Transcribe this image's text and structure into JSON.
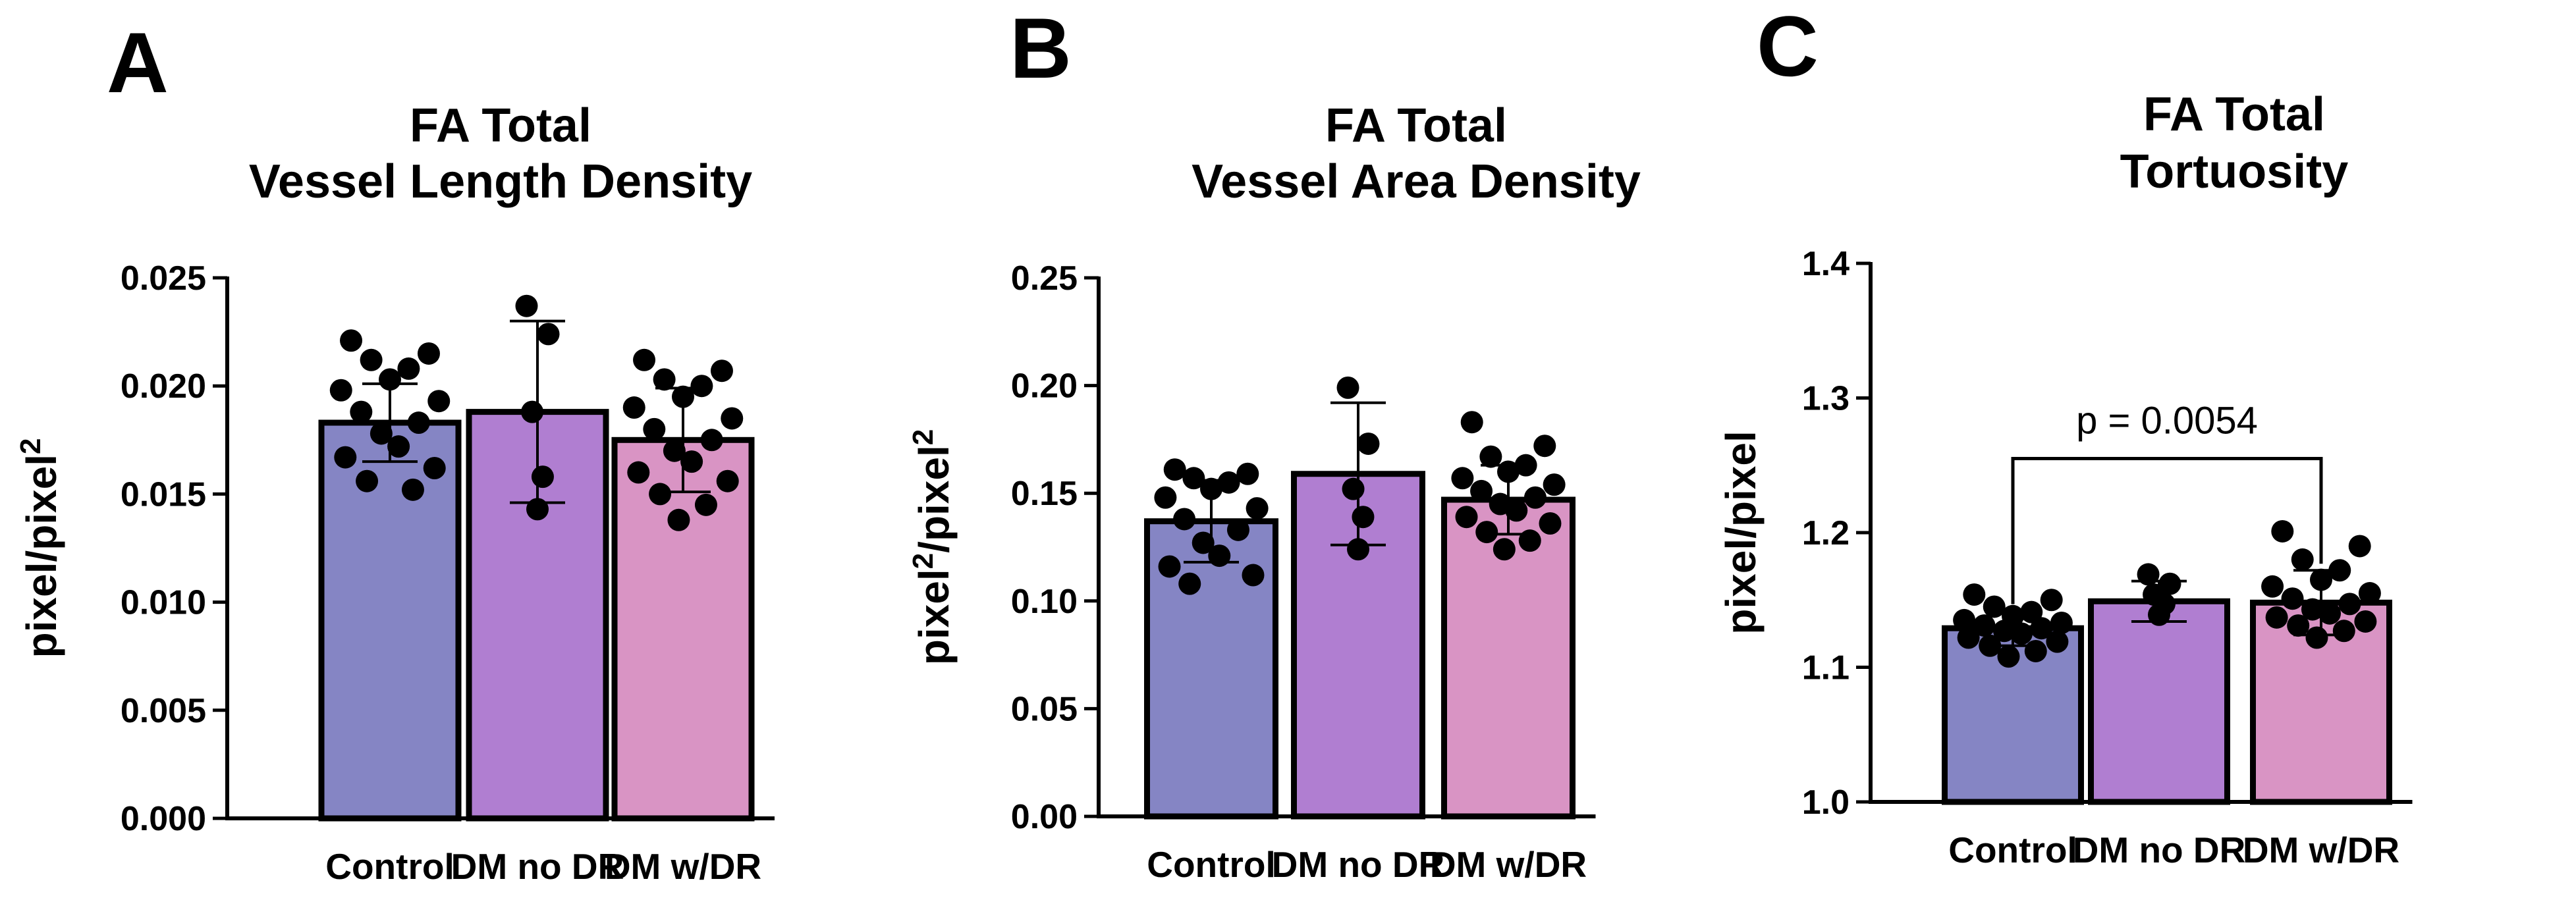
{
  "chart_data": [
    {
      "type": "bar",
      "panel_label": "A",
      "title_lines": [
        "FA Total",
        "Vessel Length Density"
      ],
      "ylabel": "pixel/pixel",
      "ylabel_sup": "2",
      "ylabel_tail": "",
      "xlabel": "",
      "ylim": [
        0,
        0.025
      ],
      "y_ticks": [
        "0.000",
        "0.005",
        "0.010",
        "0.015",
        "0.020",
        "0.025"
      ],
      "categories": [
        "Control",
        "DM no DR",
        "DM w/DR"
      ],
      "values": [
        0.0183,
        0.0188,
        0.0175
      ],
      "sd": [
        0.0018,
        0.0042,
        0.0024
      ],
      "colors": [
        "#8585c4",
        "#b07ed1",
        "#d994c4"
      ],
      "points": [
        [
          0.0221,
          0.0215,
          0.0212,
          0.0208,
          0.0203,
          0.0198,
          0.0193,
          0.0188,
          0.0183,
          0.0178,
          0.0172,
          0.0167,
          0.0162,
          0.0156,
          0.0152
        ],
        [
          0.0237,
          0.0224,
          0.0188,
          0.0158,
          0.0143
        ],
        [
          0.0212,
          0.0207,
          0.0203,
          0.02,
          0.0195,
          0.019,
          0.0185,
          0.018,
          0.0175,
          0.017,
          0.0165,
          0.016,
          0.0156,
          0.015,
          0.0145,
          0.0138
        ]
      ],
      "annotation": null
    },
    {
      "type": "bar",
      "panel_label": "B",
      "title_lines": [
        "FA Total",
        "Vessel Area Density"
      ],
      "ylabel": "pixel",
      "ylabel_sup": "2",
      "ylabel_tail": "/pixel",
      "ylabel_tail_sup": "2",
      "xlabel": "",
      "ylim": [
        0,
        0.25
      ],
      "y_ticks": [
        "0.00",
        "0.05",
        "0.10",
        "0.15",
        "0.20",
        "0.25"
      ],
      "categories": [
        "Control",
        "DM no DR",
        "DM w/DR"
      ],
      "values": [
        0.137,
        0.159,
        0.147
      ],
      "sd": [
        0.019,
        0.033,
        0.016
      ],
      "colors": [
        "#8585c4",
        "#b07ed1",
        "#d994c4"
      ],
      "points": [
        [
          0.161,
          0.159,
          0.157,
          0.155,
          0.152,
          0.148,
          0.143,
          0.138,
          0.133,
          0.127,
          0.121,
          0.116,
          0.112,
          0.108
        ],
        [
          0.199,
          0.173,
          0.152,
          0.139,
          0.124
        ],
        [
          0.183,
          0.172,
          0.167,
          0.163,
          0.16,
          0.157,
          0.154,
          0.151,
          0.148,
          0.145,
          0.142,
          0.139,
          0.136,
          0.132,
          0.128,
          0.124
        ]
      ],
      "annotation": null
    },
    {
      "type": "bar",
      "panel_label": "C",
      "title_lines": [
        "FA Total",
        "Tortuosity"
      ],
      "ylabel": "pixel/pixel",
      "ylabel_sup": "",
      "ylabel_tail": "",
      "xlabel": "",
      "ylim": [
        1.0,
        1.4
      ],
      "y_ticks": [
        "1.0",
        "1.1",
        "1.2",
        "1.3",
        "1.4"
      ],
      "categories": [
        "Control",
        "DM no DR",
        "DM w/DR"
      ],
      "values": [
        1.129,
        1.149,
        1.148
      ],
      "sd": [
        0.013,
        0.015,
        0.024
      ],
      "colors": [
        "#8585c4",
        "#b07ed1",
        "#d994c4"
      ],
      "points": [
        [
          1.154,
          1.15,
          1.145,
          1.141,
          1.138,
          1.135,
          1.133,
          1.131,
          1.129,
          1.127,
          1.125,
          1.122,
          1.119,
          1.116,
          1.112,
          1.108
        ],
        [
          1.169,
          1.162,
          1.154,
          1.147,
          1.139
        ],
        [
          1.201,
          1.19,
          1.18,
          1.172,
          1.165,
          1.16,
          1.155,
          1.151,
          1.147,
          1.143,
          1.14,
          1.137,
          1.134,
          1.131,
          1.127,
          1.122
        ]
      ],
      "annotation": {
        "text": "p = 0.0054",
        "from_category": 0,
        "to_category": 2,
        "y": 1.255
      }
    }
  ]
}
